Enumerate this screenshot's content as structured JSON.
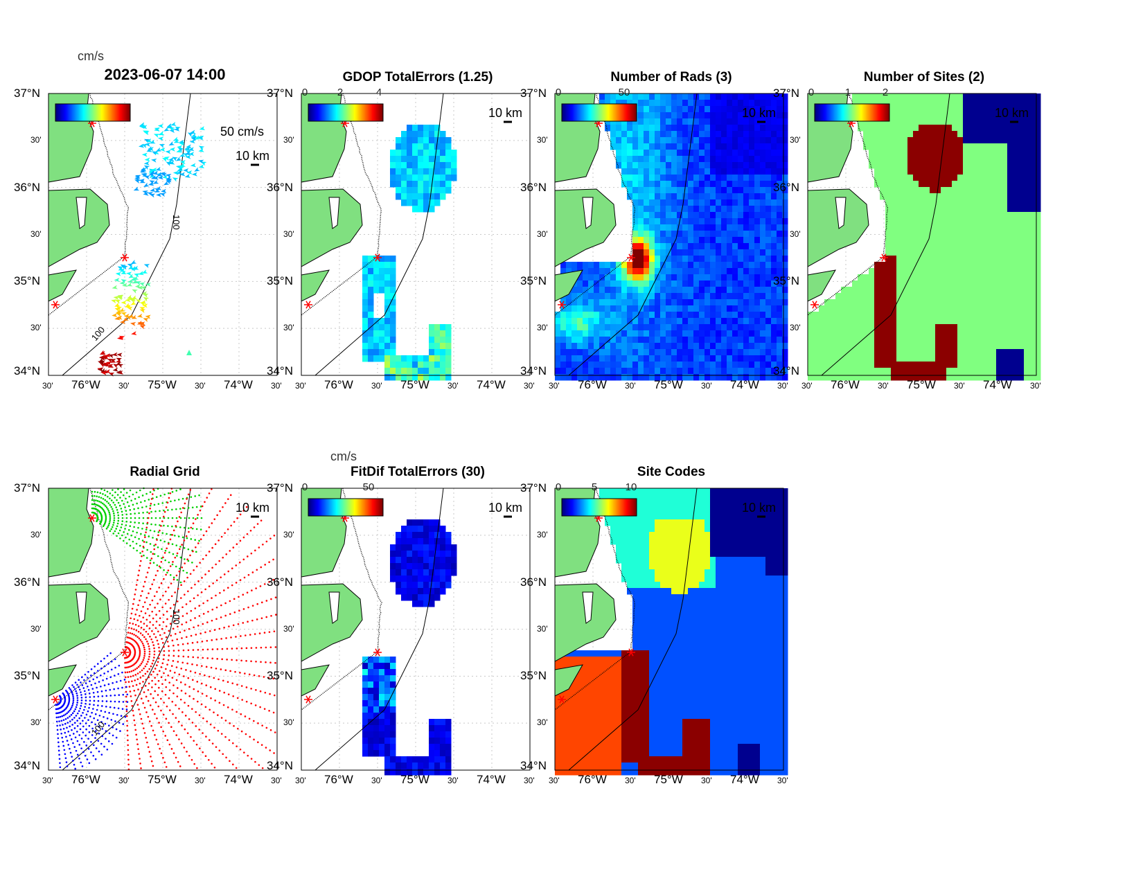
{
  "figure": {
    "lon_ticks": [
      "30'",
      "76°W",
      "30'",
      "75°W",
      "30'",
      "74°W",
      "30'"
    ],
    "lat_ticks": [
      "34°N",
      "30'",
      "35°N",
      "30'",
      "36°N",
      "30'",
      "37°N"
    ],
    "scale_label": "10 km",
    "contour_label": "100",
    "panels": [
      {
        "title": "2023-06-07 14:00",
        "unit": "cm/s",
        "vector_scale": "50 cm/s",
        "colorbar_ticks": []
      },
      {
        "title": "GDOP TotalErrors (1.25)",
        "colorbar_ticks": [
          "0",
          "2",
          "4"
        ]
      },
      {
        "title": "Number of Rads (3)",
        "colorbar_ticks": [
          "0",
          "50"
        ]
      },
      {
        "title": "Number of Sites (2)",
        "colorbar_ticks": [
          "0",
          "1",
          "2"
        ]
      },
      {
        "title": "Radial Grid",
        "colorbar_ticks": []
      },
      {
        "title": "FitDif TotalErrors (30)",
        "unit": "cm/s",
        "colorbar_ticks": [
          "0",
          "50"
        ]
      },
      {
        "title": "Site Codes",
        "colorbar_ticks": [
          "0",
          "5",
          "10"
        ]
      }
    ],
    "colors": {
      "land": "#80e080",
      "site": "#ff0000",
      "grid": "#c8c8c8"
    }
  }
}
